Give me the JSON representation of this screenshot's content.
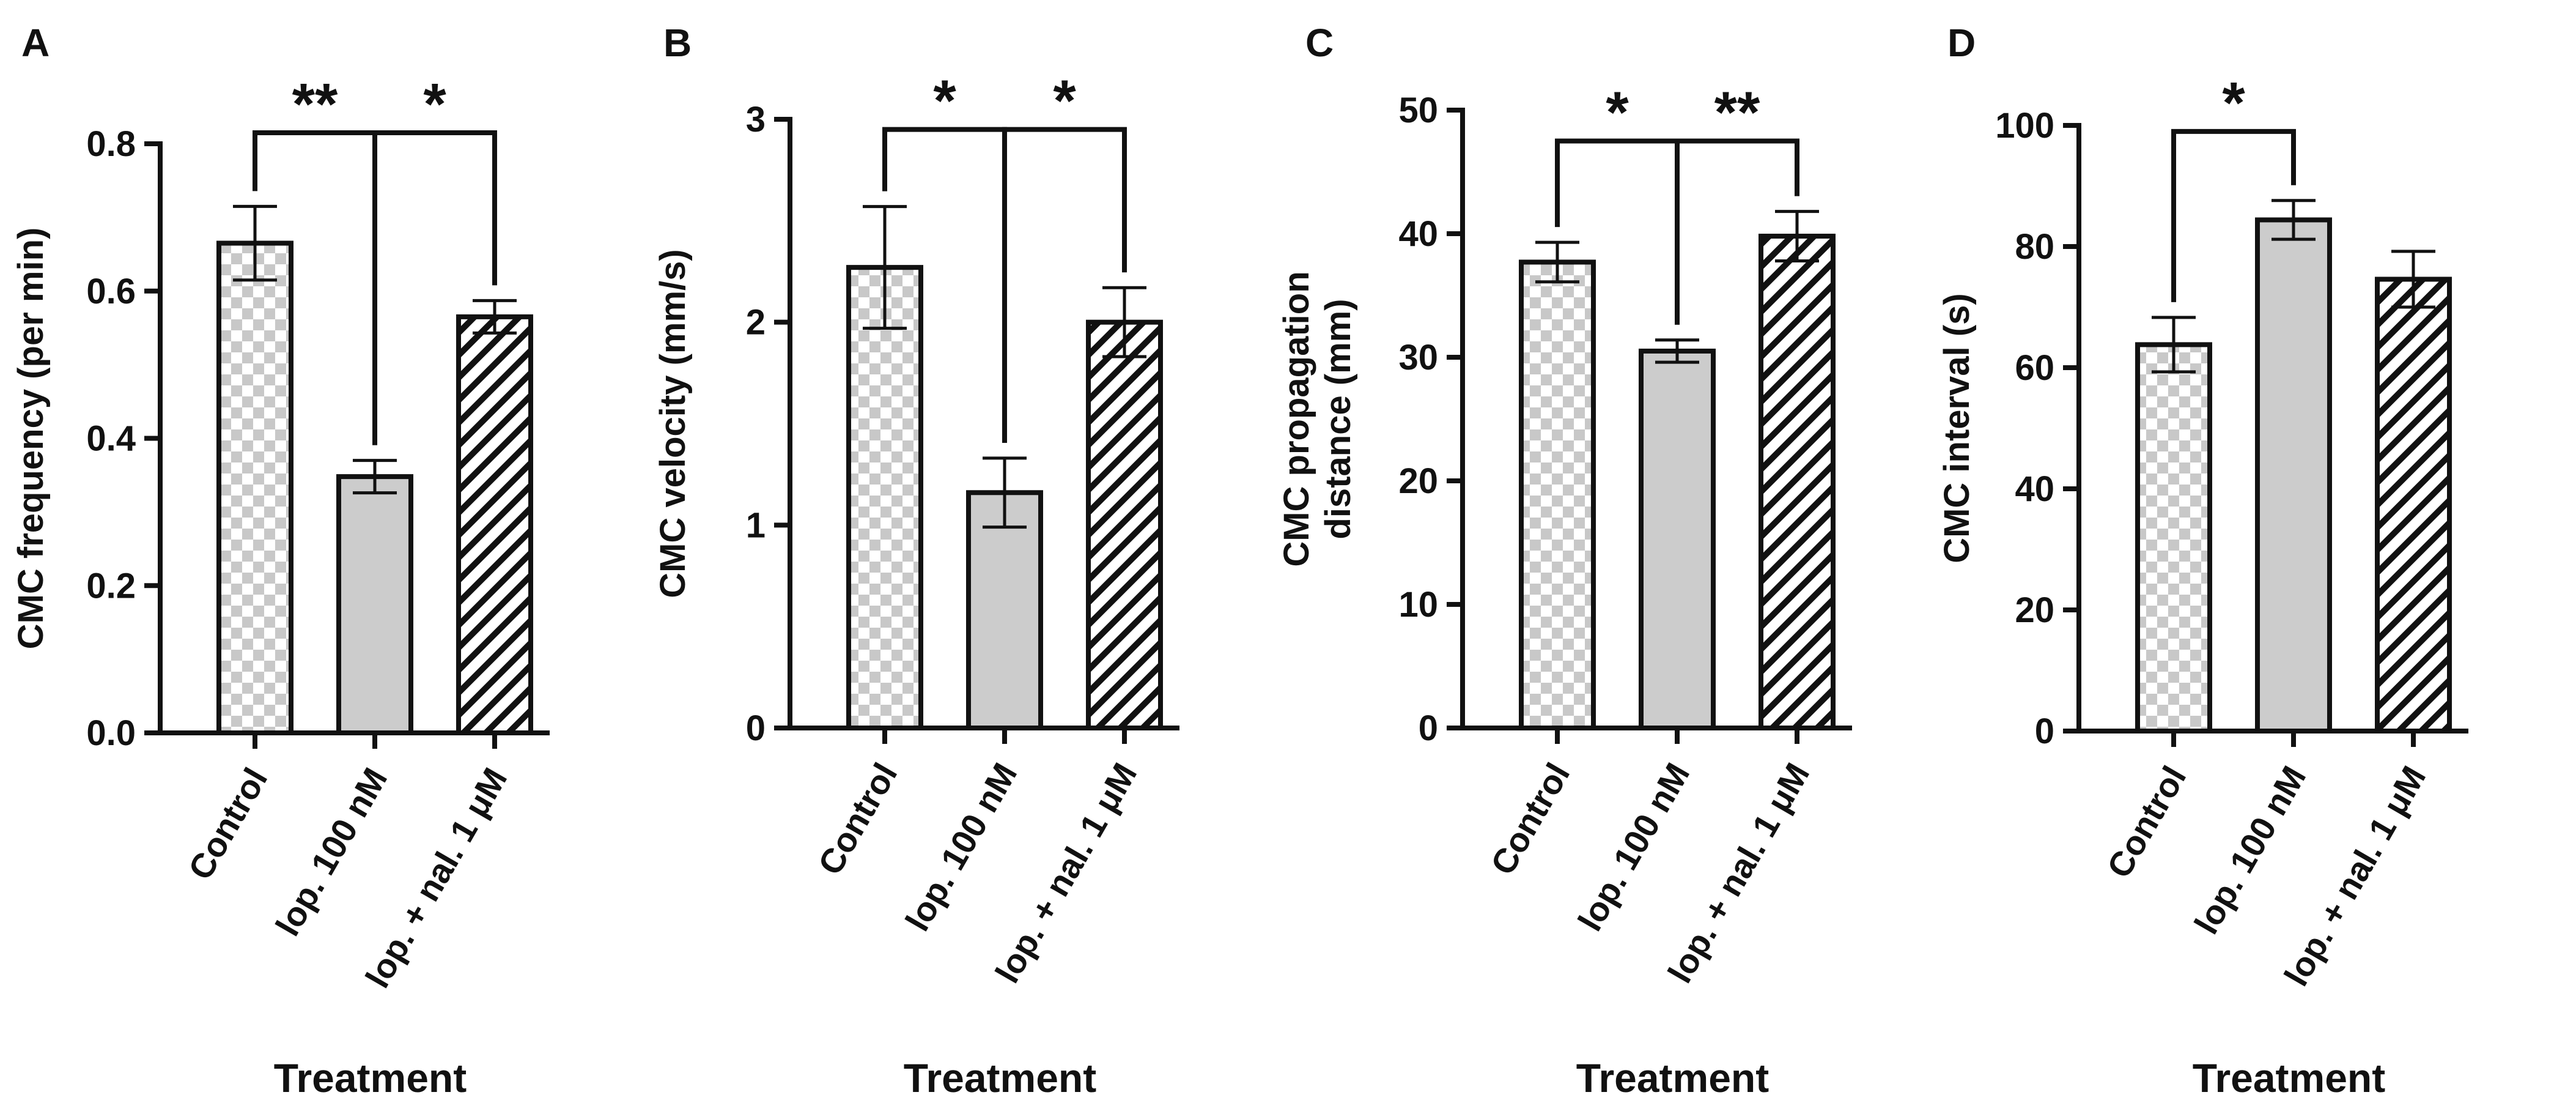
{
  "figure": {
    "x_axis_title": "Treatment",
    "categories": [
      "Control",
      "lop. 100 nM",
      "lop. + nal. 1 μM"
    ],
    "colors": {
      "ink": "#111111",
      "checker_light": "#ffffff",
      "checker_dark": "#c8c8c8",
      "solid_fill": "#cccccc",
      "hatch_bg": "#ffffff",
      "hatch_line": "#111111"
    },
    "patterns": [
      "checker",
      "solid",
      "hatch"
    ]
  },
  "chart_data": [
    {
      "type": "bar",
      "panel_label": "A",
      "ylabel": "CMC frequency (per min)",
      "ylabel_lines": [
        "CMC frequency (per min)"
      ],
      "xlabel": "Treatment",
      "categories": [
        "Control",
        "lop. 100 nM",
        "lop. + nal. 1 μM"
      ],
      "values": [
        0.665,
        0.348,
        0.565
      ],
      "errors": [
        0.05,
        0.022,
        0.022
      ],
      "ylim": [
        0,
        0.8
      ],
      "yticks": [
        "0.0",
        "0.2",
        "0.4",
        "0.6",
        "0.8"
      ],
      "ytick_values": [
        0,
        0.2,
        0.4,
        0.6,
        0.8
      ],
      "significance": [
        {
          "from": 0,
          "to": 1,
          "label": "**",
          "y": 0.815
        },
        {
          "from": 1,
          "to": 2,
          "label": "*",
          "y": 0.815
        }
      ]
    },
    {
      "type": "bar",
      "panel_label": "B",
      "ylabel": "CMC velocity (mm/s)",
      "ylabel_lines": [
        "CMC velocity (mm/s)"
      ],
      "xlabel": "Treatment",
      "categories": [
        "Control",
        "lop. 100 nM",
        "lop. + nal. 1 μM"
      ],
      "values": [
        2.27,
        1.16,
        2.0
      ],
      "errors": [
        0.3,
        0.17,
        0.17
      ],
      "ylim": [
        0,
        3
      ],
      "yticks": [
        "0",
        "1",
        "2",
        "3"
      ],
      "ytick_values": [
        0,
        1,
        2,
        3
      ],
      "significance": [
        {
          "from": 0,
          "to": 1,
          "label": "*",
          "y": 2.95
        },
        {
          "from": 1,
          "to": 2,
          "label": "*",
          "y": 2.95
        }
      ]
    },
    {
      "type": "bar",
      "panel_label": "C",
      "ylabel": "CMC propagation distance (mm)",
      "ylabel_lines": [
        "CMC  propagation",
        "distance (mm)"
      ],
      "xlabel": "Treatment",
      "categories": [
        "Control",
        "lop. 100 nM",
        "lop. + nal. 1 μM"
      ],
      "values": [
        37.7,
        30.5,
        39.8
      ],
      "errors": [
        1.6,
        0.9,
        2.0
      ],
      "ylim": [
        0,
        50
      ],
      "yticks": [
        "0",
        "10",
        "20",
        "30",
        "40",
        "50"
      ],
      "ytick_values": [
        0,
        10,
        20,
        30,
        40,
        50
      ],
      "significance": [
        {
          "from": 0,
          "to": 1,
          "label": "*",
          "y": 47.5
        },
        {
          "from": 1,
          "to": 2,
          "label": "**",
          "y": 47.5
        }
      ]
    },
    {
      "type": "bar",
      "panel_label": "D",
      "ylabel": "CMC interval (s)",
      "ylabel_lines": [
        "CMC interval (s)"
      ],
      "xlabel": "Treatment",
      "categories": [
        "Control",
        "lop. 100 nM",
        "lop. + nal. 1 μM"
      ],
      "values": [
        63.8,
        84.4,
        74.6
      ],
      "errors": [
        4.5,
        3.2,
        4.6
      ],
      "ylim": [
        0,
        100
      ],
      "yticks": [
        "0",
        "20",
        "40",
        "60",
        "80",
        "100"
      ],
      "ytick_values": [
        0,
        20,
        40,
        60,
        80,
        100
      ],
      "significance": [
        {
          "from": 0,
          "to": 1,
          "label": "*",
          "y": 99
        }
      ]
    }
  ]
}
